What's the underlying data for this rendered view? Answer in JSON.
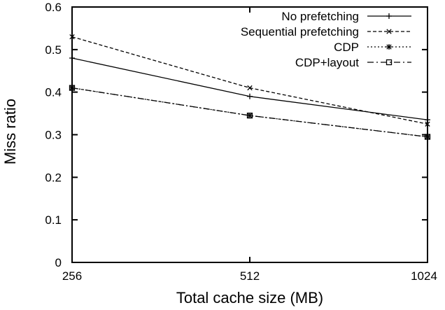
{
  "figure": {
    "background": "#ffffff",
    "foreground": "#000000"
  },
  "chart_data": {
    "type": "line",
    "title": "",
    "xlabel": "Total cache size (MB)",
    "ylabel": "Miss ratio",
    "x_scale": "log2",
    "x": [
      256,
      512,
      1024
    ],
    "xtick_labels": [
      "256",
      "512",
      "1024"
    ],
    "ylim": [
      0,
      0.6
    ],
    "yticks": [
      0,
      0.1,
      0.2,
      0.3,
      0.4,
      0.5,
      0.6
    ],
    "ytick_labels": [
      "0",
      "0.1",
      "0.2",
      "0.3",
      "0.4",
      "0.5",
      "0.6"
    ],
    "grid": false,
    "legend_position": "top-right-inside",
    "legend_entries": [
      "No prefetching",
      "Sequential prefetching",
      "CDP",
      "CDP+layout"
    ],
    "series": [
      {
        "name": "No prefetching",
        "marker": "plus",
        "line_style": "solid",
        "values": [
          0.48,
          0.39,
          0.335
        ]
      },
      {
        "name": "Sequential prefetching",
        "marker": "cross",
        "line_style": "dashed",
        "values": [
          0.53,
          0.41,
          0.325
        ]
      },
      {
        "name": "CDP",
        "marker": "asterisk",
        "line_style": "dotted",
        "values": [
          0.41,
          0.345,
          0.295
        ]
      },
      {
        "name": "CDP+layout",
        "marker": "open-square",
        "line_style": "dash-dot",
        "values": [
          0.41,
          0.345,
          0.295
        ]
      }
    ]
  }
}
